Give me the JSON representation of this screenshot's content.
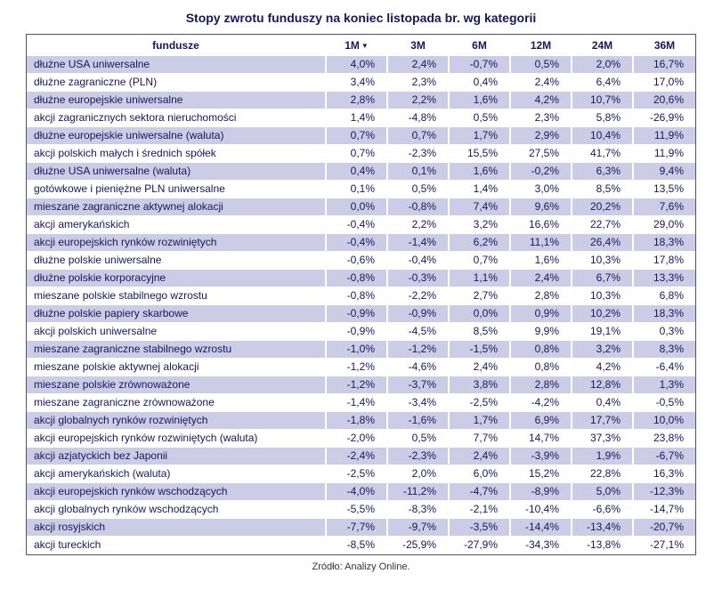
{
  "title": "Stopy zwrotu funduszy na koniec listopada br. wg kategorii",
  "source": "Zródło: Analizy Online.",
  "colors": {
    "text_navy": "#17175c",
    "row_shade": "#cccce6",
    "background": "#ffffff"
  },
  "chart_data": {
    "type": "table",
    "title": "Stopy zwrotu funduszy na koniec listopada br. wg kategorii",
    "columns": [
      "fundusze",
      "1M",
      "3M",
      "6M",
      "12M",
      "24M",
      "36M"
    ],
    "sorted_by": "1M",
    "sort_order": "desc",
    "sort_indicator": "▼",
    "rows": [
      {
        "fundusze": "dłużne USA uniwersalne",
        "values": [
          "4,0%",
          "2,4%",
          "-0,7%",
          "0,5%",
          "2,0%",
          "16,7%"
        ]
      },
      {
        "fundusze": "dłużne zagraniczne (PLN)",
        "values": [
          "3,4%",
          "2,3%",
          "0,4%",
          "2,4%",
          "6,4%",
          "17,0%"
        ]
      },
      {
        "fundusze": "dłużne europejskie uniwersalne",
        "values": [
          "2,8%",
          "2,2%",
          "1,6%",
          "4,2%",
          "10,7%",
          "20,6%"
        ]
      },
      {
        "fundusze": "akcji zagranicznych sektora nieruchomości",
        "values": [
          "1,4%",
          "-4,8%",
          "0,5%",
          "2,3%",
          "5,8%",
          "-26,9%"
        ]
      },
      {
        "fundusze": "dłużne europejskie uniwersalne (waluta)",
        "values": [
          "0,7%",
          "0,7%",
          "1,7%",
          "2,9%",
          "10,4%",
          "11,9%"
        ]
      },
      {
        "fundusze": "akcji polskich małych i średnich spółek",
        "values": [
          "0,7%",
          "-2,3%",
          "15,5%",
          "27,5%",
          "41,7%",
          "11,9%"
        ]
      },
      {
        "fundusze": "dłużne USA uniwersalne (waluta)",
        "values": [
          "0,4%",
          "0,1%",
          "1,6%",
          "-0,2%",
          "6,3%",
          "9,4%"
        ]
      },
      {
        "fundusze": "gotówkowe i pieniężne PLN uniwersalne",
        "values": [
          "0,1%",
          "0,5%",
          "1,4%",
          "3,0%",
          "8,5%",
          "13,5%"
        ]
      },
      {
        "fundusze": "mieszane zagraniczne aktywnej alokacji",
        "values": [
          "0,0%",
          "-0,8%",
          "7,4%",
          "9,6%",
          "20,2%",
          "7,6%"
        ]
      },
      {
        "fundusze": "akcji amerykańskich",
        "values": [
          "-0,4%",
          "2,2%",
          "3,2%",
          "16,6%",
          "22,7%",
          "29,0%"
        ]
      },
      {
        "fundusze": "akcji europejskich rynków rozwiniętych",
        "values": [
          "-0,4%",
          "-1,4%",
          "6,2%",
          "11,1%",
          "26,4%",
          "18,3%"
        ]
      },
      {
        "fundusze": "dłużne polskie uniwersalne",
        "values": [
          "-0,6%",
          "-0,4%",
          "0,7%",
          "1,6%",
          "10,3%",
          "17,8%"
        ]
      },
      {
        "fundusze": "dłużne polskie korporacyjne",
        "values": [
          "-0,8%",
          "-0,3%",
          "1,1%",
          "2,4%",
          "6,7%",
          "13,3%"
        ]
      },
      {
        "fundusze": "mieszane polskie stabilnego wzrostu",
        "values": [
          "-0,8%",
          "-2,2%",
          "2,7%",
          "2,8%",
          "10,3%",
          "6,8%"
        ]
      },
      {
        "fundusze": "dłużne polskie papiery skarbowe",
        "values": [
          "-0,9%",
          "-0,9%",
          "0,0%",
          "0,9%",
          "10,2%",
          "18,3%"
        ]
      },
      {
        "fundusze": "akcji polskich uniwersalne",
        "values": [
          "-0,9%",
          "-4,5%",
          "8,5%",
          "9,9%",
          "19,1%",
          "0,3%"
        ]
      },
      {
        "fundusze": "mieszane zagraniczne stabilnego wzrostu",
        "values": [
          "-1,0%",
          "-1,2%",
          "-1,5%",
          "0,8%",
          "3,2%",
          "8,3%"
        ]
      },
      {
        "fundusze": "mieszane polskie aktywnej alokacji",
        "values": [
          "-1,2%",
          "-4,6%",
          "2,4%",
          "0,8%",
          "4,2%",
          "-6,4%"
        ]
      },
      {
        "fundusze": "mieszane polskie zrównoważone",
        "values": [
          "-1,2%",
          "-3,7%",
          "3,8%",
          "2,8%",
          "12,8%",
          "1,3%"
        ]
      },
      {
        "fundusze": "mieszane zagraniczne zrównoważone",
        "values": [
          "-1,4%",
          "-3,4%",
          "-2,5%",
          "-4,2%",
          "0,4%",
          "-0,5%"
        ]
      },
      {
        "fundusze": "akcji globalnych rynków rozwiniętych",
        "values": [
          "-1,8%",
          "-1,6%",
          "1,7%",
          "6,9%",
          "17,7%",
          "10,0%"
        ]
      },
      {
        "fundusze": "akcji europejskich rynków rozwiniętych (waluta)",
        "values": [
          "-2,0%",
          "0,5%",
          "7,7%",
          "14,7%",
          "37,3%",
          "23,8%"
        ]
      },
      {
        "fundusze": "akcji azjatyckich bez Japonii",
        "values": [
          "-2,4%",
          "-2,3%",
          "2,4%",
          "-3,9%",
          "1,9%",
          "-6,7%"
        ]
      },
      {
        "fundusze": "akcji amerykańskich (waluta)",
        "values": [
          "-2,5%",
          "2,0%",
          "6,0%",
          "15,2%",
          "22,8%",
          "16,3%"
        ]
      },
      {
        "fundusze": "akcji europejskich rynków wschodzących",
        "values": [
          "-4,0%",
          "-11,2%",
          "-4,7%",
          "-8,9%",
          "5,0%",
          "-12,3%"
        ]
      },
      {
        "fundusze": "akcji globalnych rynków wschodzących",
        "values": [
          "-5,5%",
          "-8,3%",
          "-2,1%",
          "-10,4%",
          "-6,6%",
          "-14,7%"
        ]
      },
      {
        "fundusze": "akcji rosyjskich",
        "values": [
          "-7,7%",
          "-9,7%",
          "-3,5%",
          "-14,4%",
          "-13,4%",
          "-20,7%"
        ]
      },
      {
        "fundusze": "akcji tureckich",
        "values": [
          "-8,5%",
          "-25,9%",
          "-27,9%",
          "-34,3%",
          "-13,8%",
          "-27,1%"
        ]
      }
    ]
  }
}
